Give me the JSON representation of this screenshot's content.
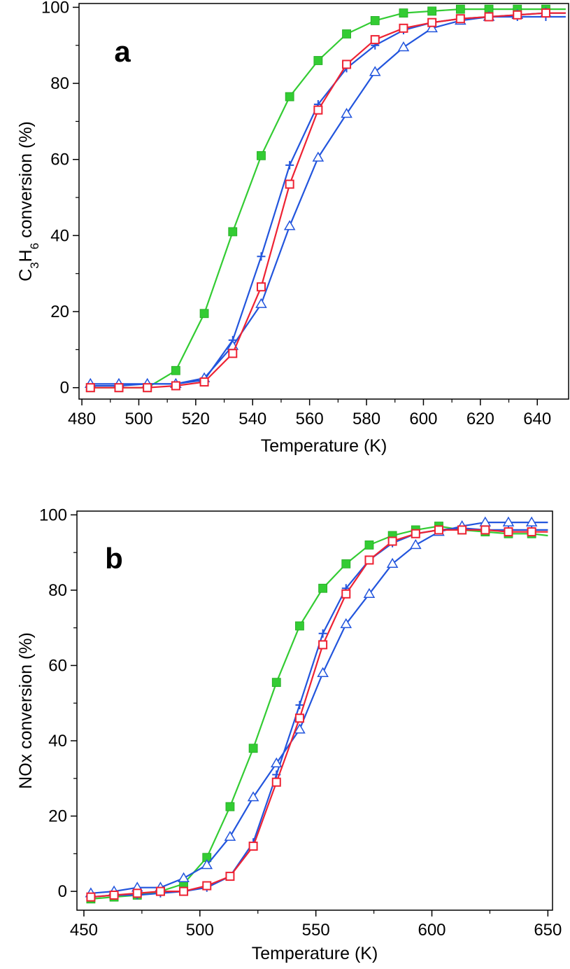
{
  "chart_data": [
    {
      "type": "line",
      "panel_label": "a",
      "xlabel": "Temperature (K)",
      "ylabel_parts": [
        "C",
        "3",
        "H",
        "6",
        " conversion (%)"
      ],
      "xlim": [
        479,
        651
      ],
      "ylim": [
        -3,
        101
      ],
      "xticks": [
        480,
        500,
        520,
        540,
        560,
        580,
        600,
        620,
        640
      ],
      "yticks": [
        0,
        20,
        40,
        60,
        80,
        100
      ],
      "grid": false,
      "series": [
        {
          "marker": "filled-square",
          "color": "#33cc33",
          "x": [
            483,
            493,
            503,
            513,
            523,
            533,
            543,
            553,
            563,
            573,
            583,
            593,
            603,
            613,
            623,
            633,
            643,
            650
          ],
          "y": [
            0,
            0,
            0,
            4.5,
            19.5,
            41,
            61,
            76.5,
            86,
            93,
            96.5,
            98.5,
            99,
            99.5,
            99.5,
            99.5,
            99.5,
            99.5
          ]
        },
        {
          "marker": "plus",
          "color": "#2255dd",
          "x": [
            483,
            493,
            503,
            513,
            523,
            533,
            543,
            553,
            563,
            573,
            583,
            593,
            603,
            613,
            623,
            633,
            643,
            650
          ],
          "y": [
            0.5,
            0.5,
            1,
            1,
            2,
            12.5,
            34.5,
            58.5,
            74.5,
            84,
            90,
            94,
            96,
            97,
            97.5,
            97.5,
            97.5,
            97.5
          ]
        },
        {
          "marker": "open-triangle",
          "color": "#2255dd",
          "x": [
            483,
            493,
            503,
            513,
            523,
            533,
            543,
            553,
            563,
            573,
            583,
            593,
            603,
            613,
            623,
            633,
            643,
            650
          ],
          "y": [
            1,
            1,
            1,
            1,
            2.5,
            11,
            22,
            42.5,
            60.5,
            72,
            83,
            89.5,
            94.5,
            96.5,
            97.5,
            98,
            98.5,
            98.5
          ]
        },
        {
          "marker": "open-square",
          "color": "#ee2233",
          "x": [
            483,
            493,
            503,
            513,
            523,
            533,
            543,
            553,
            563,
            573,
            583,
            593,
            603,
            613,
            623,
            633,
            643,
            650
          ],
          "y": [
            0,
            0,
            0,
            0.5,
            1.5,
            9,
            26.5,
            53.5,
            73,
            85,
            91.5,
            94.5,
            96,
            97,
            97.5,
            98,
            98.5,
            98.5
          ]
        }
      ]
    },
    {
      "type": "line",
      "panel_label": "b",
      "xlabel": "Temperature (K)",
      "ylabel_parts": [
        "NOx conversion (%)"
      ],
      "xlim": [
        447,
        652
      ],
      "ylim": [
        -5,
        101
      ],
      "xticks": [
        450,
        500,
        550,
        600,
        650
      ],
      "yticks": [
        0,
        20,
        40,
        60,
        80,
        100
      ],
      "grid": false,
      "series": [
        {
          "marker": "filled-square",
          "color": "#33cc33",
          "x": [
            453,
            463,
            473,
            483,
            493,
            503,
            513,
            523,
            533,
            543,
            553,
            563,
            573,
            583,
            593,
            603,
            613,
            623,
            633,
            643,
            650
          ],
          "y": [
            -2,
            -1.5,
            -1,
            0,
            2,
            9,
            22.5,
            38,
            55.5,
            70.5,
            80.5,
            87,
            92,
            94.5,
            96,
            97,
            96,
            95.5,
            95,
            95,
            94.5
          ]
        },
        {
          "marker": "plus",
          "color": "#2255dd",
          "x": [
            453,
            463,
            473,
            483,
            493,
            503,
            513,
            523,
            533,
            543,
            553,
            563,
            573,
            583,
            593,
            603,
            613,
            623,
            633,
            643,
            650
          ],
          "y": [
            -1.5,
            -1,
            -1,
            -0.5,
            0,
            1,
            4,
            13,
            31,
            49.5,
            68.5,
            80.5,
            88,
            92.5,
            95,
            96,
            96.5,
            96,
            96,
            96,
            96
          ]
        },
        {
          "marker": "open-triangle",
          "color": "#2255dd",
          "x": [
            453,
            463,
            473,
            483,
            493,
            503,
            513,
            523,
            533,
            543,
            553,
            563,
            573,
            583,
            593,
            603,
            613,
            623,
            633,
            643,
            650
          ],
          "y": [
            -0.5,
            0,
            1,
            1,
            3.5,
            7,
            14.5,
            25,
            34,
            43,
            58,
            71,
            79,
            87,
            92,
            95.5,
            97,
            98,
            98,
            98,
            98
          ]
        },
        {
          "marker": "open-square",
          "color": "#ee2233",
          "x": [
            453,
            463,
            473,
            483,
            493,
            503,
            513,
            523,
            533,
            543,
            553,
            563,
            573,
            583,
            593,
            603,
            613,
            623,
            633,
            643,
            650
          ],
          "y": [
            -1.5,
            -1,
            -0.5,
            0,
            0,
            1.5,
            4,
            12,
            29,
            46,
            65.5,
            79,
            88,
            93,
            95,
            96,
            96,
            96,
            95.5,
            95.5,
            95.5
          ]
        }
      ]
    }
  ]
}
